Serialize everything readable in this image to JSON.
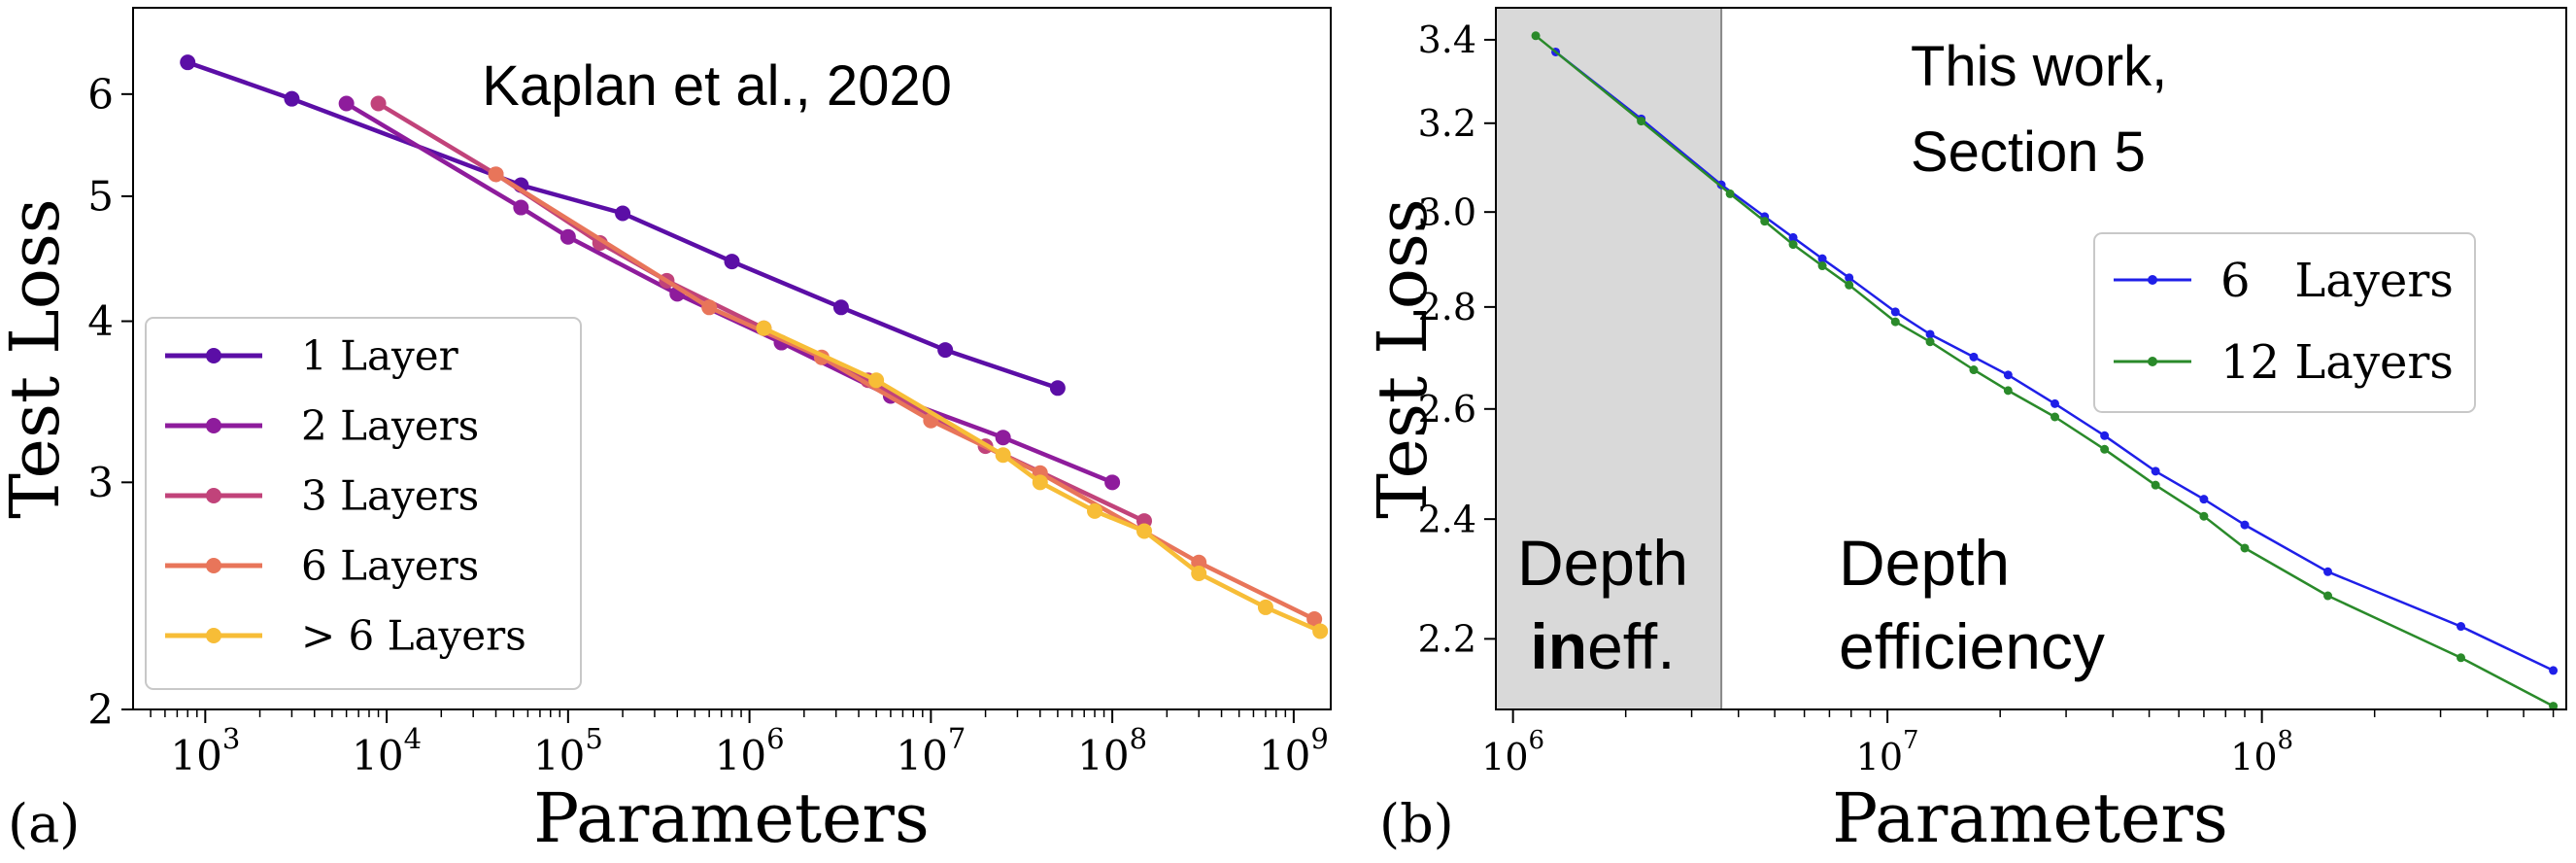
{
  "panel_labels": {
    "a": "(a)",
    "b": "(b)"
  },
  "chart_data": [
    {
      "type": "line",
      "title": "Kaplan et al., 2020",
      "xlabel": "Parameters",
      "ylabel": "Test Loss",
      "xscale": "log",
      "yscale": "log",
      "xlim": [
        400,
        1600000000
      ],
      "ylim": [
        2,
        7
      ],
      "xticks": [
        {
          "label": "10",
          "sup": "3"
        },
        {
          "label": "10",
          "sup": "4"
        },
        {
          "label": "10",
          "sup": "5"
        },
        {
          "label": "10",
          "sup": "6"
        },
        {
          "label": "10",
          "sup": "7"
        },
        {
          "label": "10",
          "sup": "8"
        },
        {
          "label": "10",
          "sup": "9"
        }
      ],
      "yticks": [
        "2",
        "3",
        "4",
        "5",
        "6"
      ],
      "legend_position": "lower-left",
      "colors": {
        "1 Layer": "#5b0ea6",
        "2 Layers": "#8e1c9c",
        "3 Layers": "#c1437a",
        "6 Layers": "#e8755a",
        ">6 Layers": "#f7bd37"
      },
      "legend": [
        "1 Layer",
        "2 Layers",
        "3 Layers",
        "6 Layers",
        "> 6 Layers"
      ],
      "series": [
        {
          "name": "1 Layer",
          "x": [
            800,
            3000,
            55000,
            200000,
            800000,
            3200000,
            12000000,
            50000000
          ],
          "y": [
            6.35,
            5.95,
            5.1,
            4.85,
            4.45,
            4.1,
            3.8,
            3.55
          ]
        },
        {
          "name": "2 Layers",
          "x": [
            6000,
            55000,
            100000,
            400000,
            1500000,
            6000000,
            25000000,
            100000000
          ],
          "y": [
            5.9,
            4.9,
            4.65,
            4.2,
            3.85,
            3.5,
            3.25,
            3.0
          ]
        },
        {
          "name": "3 Layers",
          "x": [
            9000,
            40000,
            150000,
            350000,
            1200000,
            4500000,
            20000000,
            150000000
          ],
          "y": [
            5.9,
            5.2,
            4.6,
            4.3,
            3.95,
            3.6,
            3.2,
            2.8
          ]
        },
        {
          "name": "6 Layers",
          "x": [
            40000,
            600000,
            2500000,
            10000000,
            40000000,
            300000000,
            1300000000
          ],
          "y": [
            5.2,
            4.1,
            3.75,
            3.35,
            3.05,
            2.6,
            2.35
          ]
        },
        {
          "name": ">6 Layers",
          "x": [
            1200000,
            5000000,
            25000000,
            40000000,
            80000000,
            150000000,
            300000000,
            700000000,
            1400000000
          ],
          "y": [
            3.95,
            3.6,
            3.15,
            3.0,
            2.85,
            2.75,
            2.55,
            2.4,
            2.3
          ]
        }
      ]
    },
    {
      "type": "line",
      "annotations": [
        "This work,",
        "Section 5"
      ],
      "xlabel": "Parameters",
      "ylabel": "Test Loss",
      "xscale": "log",
      "yscale": "log",
      "xlim": [
        900000,
        650000000
      ],
      "ylim": [
        2.09,
        3.48
      ],
      "xticks": [
        {
          "label": "10",
          "sup": "6"
        },
        {
          "label": "10",
          "sup": "7"
        },
        {
          "label": "10",
          "sup": "8"
        }
      ],
      "yticks": [
        "2.2",
        "2.4",
        "2.6",
        "2.8",
        "3.0",
        "3.2",
        "3.4"
      ],
      "legend_position": "upper-right",
      "regions": [
        {
          "label_line1": "Depth",
          "label_bold": "in",
          "label_rest": "eff.",
          "x_range": [
            900000,
            3600000
          ],
          "shaded": true
        },
        {
          "label_line1": "Depth",
          "label_line2": "efficiency"
        }
      ],
      "colors": {
        "6 Layers": "#1f1fe8",
        "12 Layers": "#2a8a2a"
      },
      "legend": [
        "6   Layers",
        "12 Layers"
      ],
      "series": [
        {
          "name": "6 Layers",
          "x": [
            1300000,
            2200000,
            3600000,
            4700000,
            5600000,
            6700000,
            7900000,
            10500000,
            13000000,
            17000000,
            21000000,
            28000000,
            38000000,
            52000000,
            70000000,
            90000000,
            150000000,
            340000000,
            600000000
          ],
          "y": [
            3.37,
            3.21,
            3.06,
            2.99,
            2.945,
            2.9,
            2.86,
            2.79,
            2.745,
            2.7,
            2.665,
            2.61,
            2.55,
            2.485,
            2.435,
            2.39,
            2.31,
            2.22,
            2.15
          ]
        },
        {
          "name": "12 Layers",
          "x": [
            1150000,
            2200000,
            3800000,
            4700000,
            5600000,
            6700000,
            7900000,
            10500000,
            13000000,
            17000000,
            21000000,
            28000000,
            38000000,
            52000000,
            70000000,
            90000000,
            150000000,
            340000000,
            600000000
          ],
          "y": [
            3.41,
            3.205,
            3.04,
            2.98,
            2.93,
            2.885,
            2.845,
            2.77,
            2.73,
            2.675,
            2.635,
            2.585,
            2.525,
            2.46,
            2.405,
            2.35,
            2.27,
            2.17,
            2.095
          ]
        }
      ]
    }
  ]
}
